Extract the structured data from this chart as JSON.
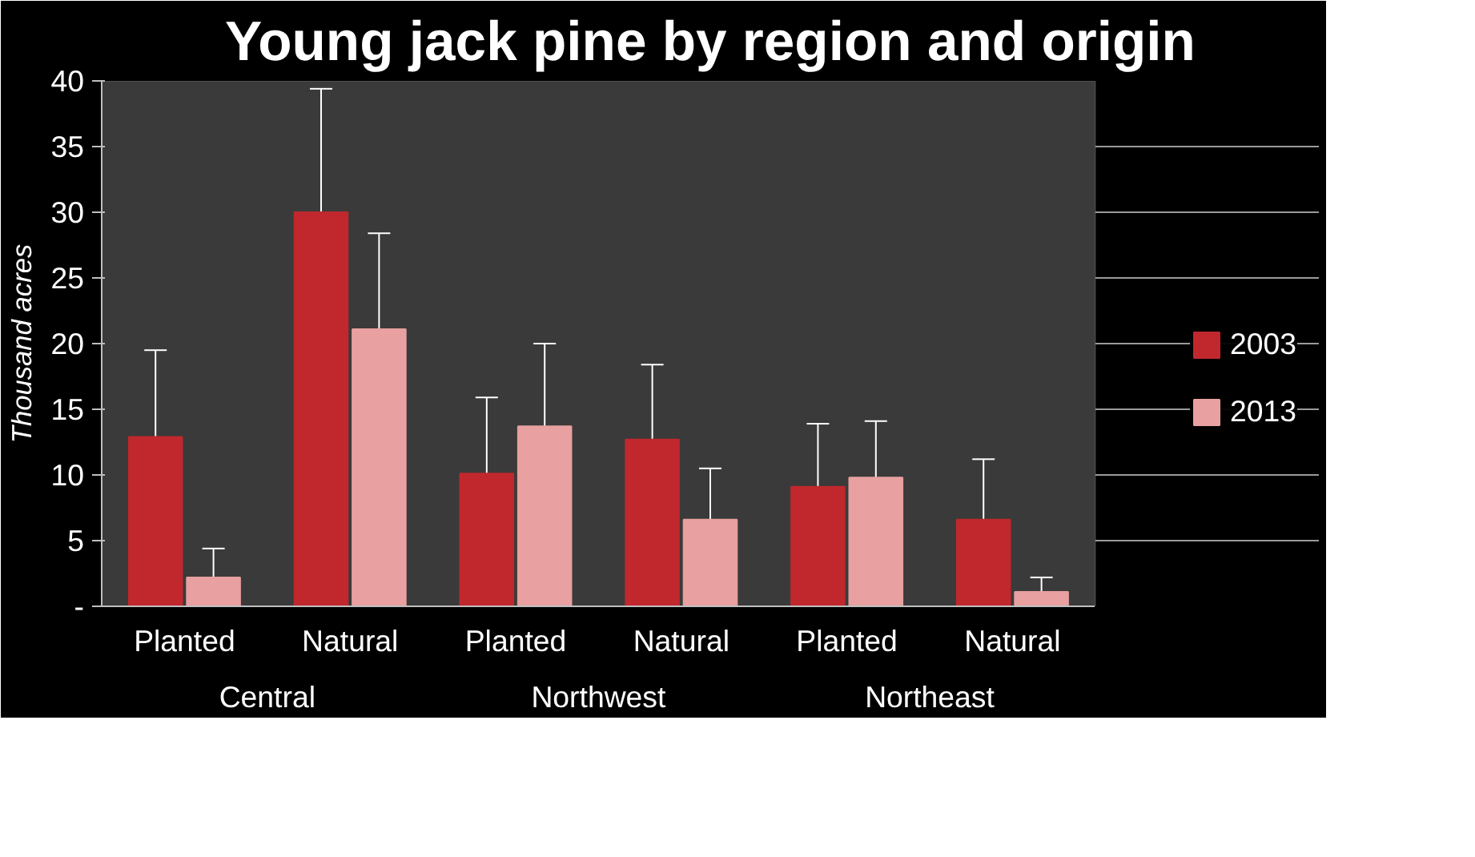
{
  "chart_data": {
    "type": "bar",
    "title": "Young jack pine by region and origin",
    "ylabel": "Thousand acres",
    "categories": [
      "Planted",
      "Natural",
      "Planted",
      "Natural",
      "Planted",
      "Natural"
    ],
    "annotations": [
      "Central",
      "Northwest",
      "Northeast"
    ],
    "series": [
      {
        "name": "2003",
        "color": "#c0282d",
        "values": [
          12.9,
          30.0,
          10.1,
          12.7,
          9.1,
          6.6
        ],
        "errors": [
          [
            12.9,
            19.5
          ],
          [
            30.0,
            39.4
          ],
          [
            10.1,
            15.9
          ],
          [
            12.7,
            18.4
          ],
          [
            9.1,
            13.9
          ],
          [
            6.6,
            11.2
          ]
        ]
      },
      {
        "name": "2013",
        "color": "#e8a0a0",
        "values": [
          2.2,
          21.1,
          13.7,
          6.6,
          9.8,
          1.1
        ],
        "errors": [
          [
            2.2,
            4.4
          ],
          [
            21.1,
            28.4
          ],
          [
            13.7,
            20.0
          ],
          [
            6.6,
            10.5
          ],
          [
            9.8,
            14.1
          ],
          [
            1.1,
            2.2
          ]
        ]
      }
    ],
    "ylim": [
      0,
      40
    ],
    "yticks": [
      {
        "value": 0,
        "label": "-"
      },
      5,
      10,
      15,
      20,
      25,
      30,
      35,
      40
    ],
    "grid": "y",
    "legend": "right"
  }
}
